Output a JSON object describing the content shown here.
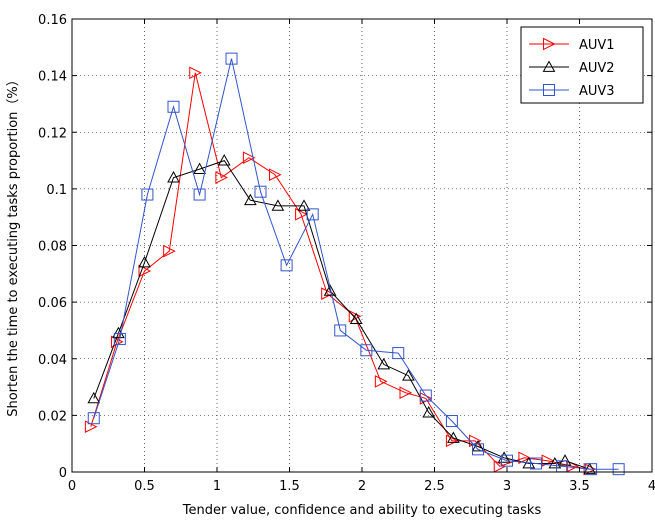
{
  "chart_data": {
    "type": "line",
    "title": "",
    "xlabel": "Tender value, confidence and ability to executing tasks",
    "ylabel": "Shorten the time to executing tasks proportion（%）",
    "xlim": [
      0,
      4
    ],
    "ylim": [
      0,
      0.16
    ],
    "xticks": [
      "0",
      "0.5",
      "1",
      "1.5",
      "2",
      "2.5",
      "3",
      "3.5",
      "4"
    ],
    "yticks": [
      "0",
      "0.02",
      "0.04",
      "0.06",
      "0.08",
      "0.1",
      "0.12",
      "0.14",
      "0.16"
    ],
    "grid": true,
    "legend_position": "top-right",
    "series": [
      {
        "name": "AUV1",
        "color": "#ff0000",
        "marker": "triangle-right",
        "x": [
          0.13,
          0.31,
          0.5,
          0.67,
          0.85,
          1.03,
          1.22,
          1.4,
          1.58,
          1.76,
          1.95,
          2.13,
          2.3,
          2.44,
          2.62,
          2.78,
          2.95,
          3.12,
          3.28,
          3.45,
          3.57
        ],
        "y": [
          0.016,
          0.046,
          0.071,
          0.078,
          0.141,
          0.104,
          0.111,
          0.105,
          0.091,
          0.063,
          0.055,
          0.032,
          0.028,
          0.026,
          0.011,
          0.011,
          0.002,
          0.005,
          0.004,
          0.002,
          0.001
        ]
      },
      {
        "name": "AUV2",
        "color": "#000000",
        "marker": "triangle-up",
        "x": [
          0.15,
          0.32,
          0.5,
          0.7,
          0.88,
          1.05,
          1.23,
          1.42,
          1.6,
          1.78,
          1.96,
          2.15,
          2.32,
          2.46,
          2.63,
          2.8,
          2.98,
          3.15,
          3.33,
          3.4,
          3.57
        ],
        "y": [
          0.026,
          0.049,
          0.074,
          0.104,
          0.107,
          0.11,
          0.096,
          0.094,
          0.094,
          0.064,
          0.054,
          0.038,
          0.034,
          0.021,
          0.012,
          0.009,
          0.005,
          0.003,
          0.003,
          0.004,
          0.001
        ]
      },
      {
        "name": "AUV3",
        "color": "#3355cc",
        "marker": "square",
        "x": [
          0.15,
          0.33,
          0.52,
          0.7,
          0.88,
          1.1,
          1.3,
          1.48,
          1.66,
          1.85,
          2.03,
          2.25,
          2.44,
          2.62,
          2.8,
          3.0,
          3.2,
          3.38,
          3.58,
          3.77
        ],
        "y": [
          0.019,
          0.047,
          0.098,
          0.129,
          0.098,
          0.146,
          0.099,
          0.073,
          0.091,
          0.05,
          0.043,
          0.042,
          0.027,
          0.018,
          0.008,
          0.004,
          0.003,
          0.002,
          0.001,
          0.001
        ]
      }
    ]
  }
}
